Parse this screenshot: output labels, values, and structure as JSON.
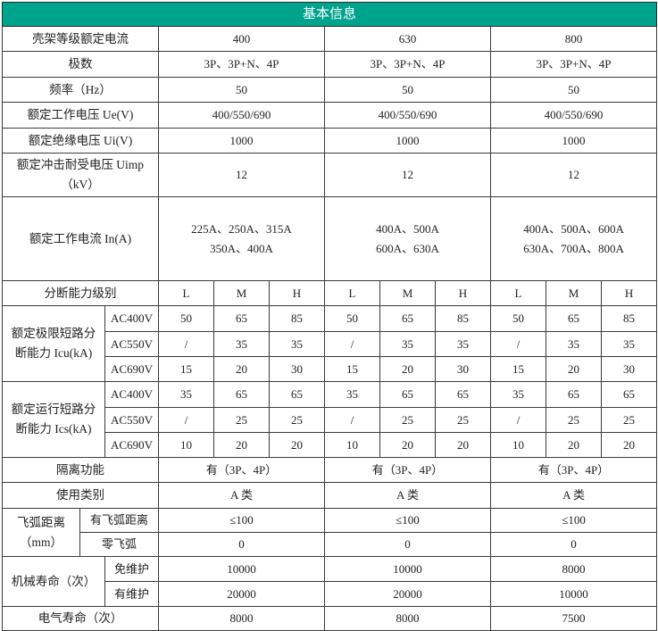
{
  "title": "基本信息",
  "colors": {
    "header_bg": "#00a38c",
    "header_text": "#ffffff",
    "border": "#3a3a3a"
  },
  "frame_current": {
    "label": "壳架等级额定电流",
    "values": [
      "400",
      "630",
      "800"
    ]
  },
  "poles": {
    "label": "极数",
    "values": [
      "3P、3P+N、4P",
      "3P、3P+N、4P",
      "3P、3P+N、4P"
    ]
  },
  "frequency": {
    "label": "频率（Hz）",
    "values": [
      "50",
      "50",
      "50"
    ]
  },
  "ue": {
    "label": "额定工作电压 Ue(V)",
    "values": [
      "400/550/690",
      "400/550/690",
      "400/550/690"
    ]
  },
  "ui": {
    "label": "额定绝缘电压 Ui(V)",
    "values": [
      "1000",
      "1000",
      "1000"
    ]
  },
  "uimp": {
    "label_lines": [
      "额定冲击耐受电压 Uimp",
      "（kV）"
    ],
    "values": [
      "12",
      "12",
      "12"
    ]
  },
  "in": {
    "label": "额定工作电流 In(A)",
    "values": [
      [
        "225A、250A、315A",
        "350A、400A"
      ],
      [
        "400A、500A",
        "600A、630A"
      ],
      [
        "400A、500A、600A",
        "630A、700A、800A"
      ]
    ]
  },
  "breaking_class": {
    "label": "分断能力级别",
    "grades": [
      "L",
      "M",
      "H",
      "L",
      "M",
      "H",
      "L",
      "M",
      "H"
    ]
  },
  "icu": {
    "label_lines": [
      "额定极限短路分",
      "断能力 Icu(kA)"
    ],
    "rows": [
      {
        "voltage": "AC400V",
        "values": [
          "50",
          "65",
          "85",
          "50",
          "65",
          "85",
          "50",
          "65",
          "85"
        ]
      },
      {
        "voltage": "AC550V",
        "values": [
          "/",
          "35",
          "35",
          "/",
          "35",
          "35",
          "/",
          "35",
          "35"
        ]
      },
      {
        "voltage": "AC690V",
        "values": [
          "15",
          "20",
          "30",
          "15",
          "20",
          "30",
          "15",
          "20",
          "30"
        ]
      }
    ]
  },
  "ics": {
    "label_lines": [
      "额定运行短路分",
      "断能力 Ics(kA)"
    ],
    "rows": [
      {
        "voltage": "AC400V",
        "values": [
          "35",
          "65",
          "65",
          "35",
          "65",
          "65",
          "35",
          "65",
          "65"
        ]
      },
      {
        "voltage": "AC550V",
        "values": [
          "/",
          "25",
          "25",
          "/",
          "25",
          "25",
          "/",
          "25",
          "25"
        ]
      },
      {
        "voltage": "AC690V",
        "values": [
          "10",
          "20",
          "20",
          "10",
          "20",
          "20",
          "10",
          "20",
          "20"
        ]
      }
    ]
  },
  "isolation": {
    "label": "隔离功能",
    "values": [
      "有（3P、4P）",
      "有（3P、4P）",
      "有（3P、4P）"
    ]
  },
  "category": {
    "label": "使用类别",
    "values": [
      "A 类",
      "A 类",
      "A 类"
    ]
  },
  "arc": {
    "label_lines": [
      "飞弧距离",
      "（mm）"
    ],
    "rows": [
      {
        "label": "有飞弧距离",
        "values": [
          "≤100",
          "≤100",
          "≤100"
        ]
      },
      {
        "label": "零飞弧",
        "values": [
          "0",
          "0",
          "0"
        ]
      }
    ]
  },
  "mechanical": {
    "label": "机械寿命（次）",
    "rows": [
      {
        "label": "免维护",
        "values": [
          "10000",
          "10000",
          "8000"
        ]
      },
      {
        "label": "有维护",
        "values": [
          "20000",
          "20000",
          "10000"
        ]
      }
    ]
  },
  "electrical": {
    "label": "电气寿命（次）",
    "values": [
      "8000",
      "8000",
      "7500"
    ]
  }
}
